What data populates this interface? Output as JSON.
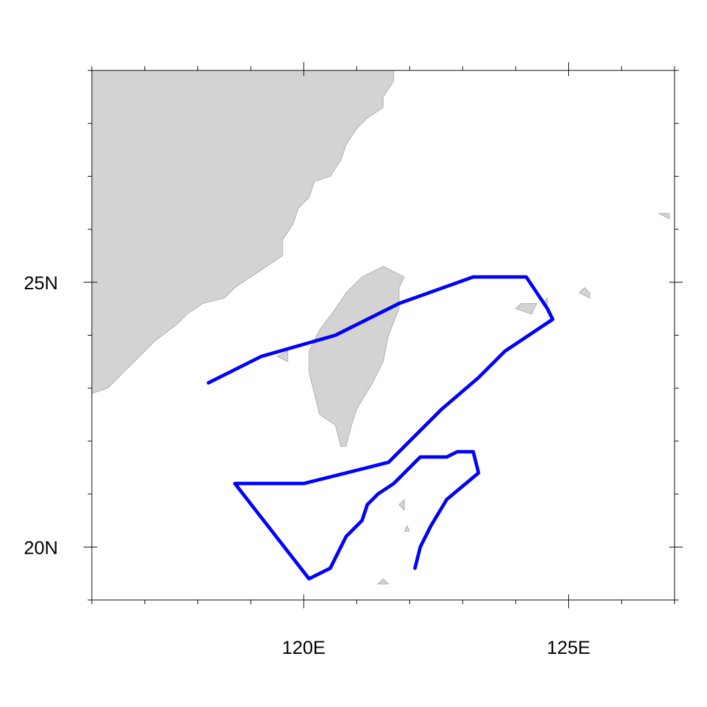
{
  "map": {
    "projection": "cylindrical-equidistant",
    "lon_range": [
      116,
      127
    ],
    "lat_range": [
      19,
      29
    ],
    "x_tick_labels": [
      {
        "lon": 120,
        "text": "120E"
      },
      {
        "lon": 125,
        "text": "125E"
      }
    ],
    "y_tick_labels": [
      {
        "lat": 25,
        "text": "25N"
      },
      {
        "lat": 20,
        "text": "20N"
      }
    ],
    "minor_tick_step_deg": 1,
    "colors": {
      "land": "#d3d3d3",
      "land_outline": "#8a8a8a",
      "track": "#0000ff",
      "ocean": "#ffffff",
      "frame": "#000000"
    }
  },
  "track": {
    "color": "#0000ff",
    "points": [
      [
        118.2,
        23.1
      ],
      [
        119.2,
        23.6
      ],
      [
        120.6,
        24.0
      ],
      [
        121.8,
        24.6
      ],
      [
        123.2,
        25.1
      ],
      [
        124.2,
        25.1
      ],
      [
        124.6,
        24.5
      ],
      [
        124.7,
        24.3
      ],
      [
        123.8,
        23.7
      ],
      [
        123.3,
        23.2
      ],
      [
        122.6,
        22.6
      ],
      [
        121.6,
        21.6
      ],
      [
        120.0,
        21.2
      ],
      [
        118.7,
        21.2
      ],
      [
        120.1,
        19.4
      ],
      [
        120.5,
        19.6
      ],
      [
        120.8,
        20.2
      ],
      [
        121.1,
        20.5
      ],
      [
        121.2,
        20.8
      ],
      [
        121.4,
        21.0
      ],
      [
        121.7,
        21.2
      ],
      [
        122.2,
        21.7
      ],
      [
        122.7,
        21.7
      ],
      [
        122.9,
        21.8
      ],
      [
        123.2,
        21.8
      ],
      [
        123.3,
        21.4
      ],
      [
        122.7,
        20.9
      ],
      [
        122.4,
        20.4
      ],
      [
        122.2,
        20.0
      ],
      [
        122.1,
        19.6
      ]
    ]
  },
  "land": {
    "mainland_coast": [
      [
        126.0,
        29.0
      ],
      [
        121.7,
        29.0
      ],
      [
        121.7,
        28.8
      ],
      [
        121.5,
        28.5
      ],
      [
        121.5,
        28.3
      ],
      [
        121.2,
        28.1
      ],
      [
        121.0,
        27.9
      ],
      [
        120.8,
        27.6
      ],
      [
        120.7,
        27.3
      ],
      [
        120.5,
        27.0
      ],
      [
        120.2,
        26.9
      ],
      [
        120.1,
        26.6
      ],
      [
        119.9,
        26.4
      ],
      [
        119.8,
        26.1
      ],
      [
        119.6,
        25.8
      ],
      [
        119.6,
        25.5
      ],
      [
        119.3,
        25.3
      ],
      [
        119.0,
        25.1
      ],
      [
        118.7,
        24.9
      ],
      [
        118.5,
        24.7
      ],
      [
        118.1,
        24.6
      ],
      [
        117.8,
        24.4
      ],
      [
        117.6,
        24.2
      ],
      [
        117.2,
        23.9
      ],
      [
        116.9,
        23.6
      ],
      [
        116.6,
        23.3
      ],
      [
        116.3,
        23.0
      ],
      [
        116.0,
        22.9
      ],
      [
        116.0,
        29.0
      ]
    ],
    "taiwan": [
      [
        121.5,
        25.3
      ],
      [
        121.9,
        25.1
      ],
      [
        121.8,
        24.9
      ],
      [
        121.8,
        24.5
      ],
      [
        121.6,
        24.0
      ],
      [
        121.5,
        23.5
      ],
      [
        121.3,
        23.1
      ],
      [
        121.0,
        22.6
      ],
      [
        120.9,
        22.3
      ],
      [
        120.8,
        21.9
      ],
      [
        120.7,
        21.9
      ],
      [
        120.6,
        22.3
      ],
      [
        120.3,
        22.5
      ],
      [
        120.2,
        22.9
      ],
      [
        120.1,
        23.3
      ],
      [
        120.1,
        23.7
      ],
      [
        120.3,
        24.1
      ],
      [
        120.6,
        24.5
      ],
      [
        120.8,
        24.8
      ],
      [
        121.1,
        25.1
      ]
    ],
    "islands": [
      [
        [
          124.0,
          24.5
        ],
        [
          124.3,
          24.4
        ],
        [
          124.4,
          24.6
        ],
        [
          124.1,
          24.6
        ]
      ],
      [
        [
          124.5,
          24.6
        ],
        [
          124.6,
          24.5
        ],
        [
          124.6,
          24.7
        ]
      ],
      [
        [
          125.2,
          24.8
        ],
        [
          125.4,
          24.7
        ],
        [
          125.4,
          24.8
        ],
        [
          125.3,
          24.9
        ]
      ],
      [
        [
          126.7,
          26.3
        ],
        [
          126.9,
          26.2
        ],
        [
          126.9,
          26.3
        ]
      ],
      [
        [
          121.8,
          20.8
        ],
        [
          121.9,
          20.7
        ],
        [
          121.9,
          20.9
        ]
      ],
      [
        [
          121.9,
          20.3
        ],
        [
          122.0,
          20.3
        ],
        [
          121.95,
          20.4
        ]
      ],
      [
        [
          121.4,
          19.3
        ],
        [
          121.6,
          19.3
        ],
        [
          121.5,
          19.4
        ]
      ],
      [
        [
          121.2,
          19.0
        ],
        [
          121.3,
          18.9
        ],
        [
          121.3,
          19.0
        ]
      ],
      [
        [
          119.5,
          23.6
        ],
        [
          119.7,
          23.5
        ],
        [
          119.7,
          23.7
        ]
      ]
    ]
  }
}
